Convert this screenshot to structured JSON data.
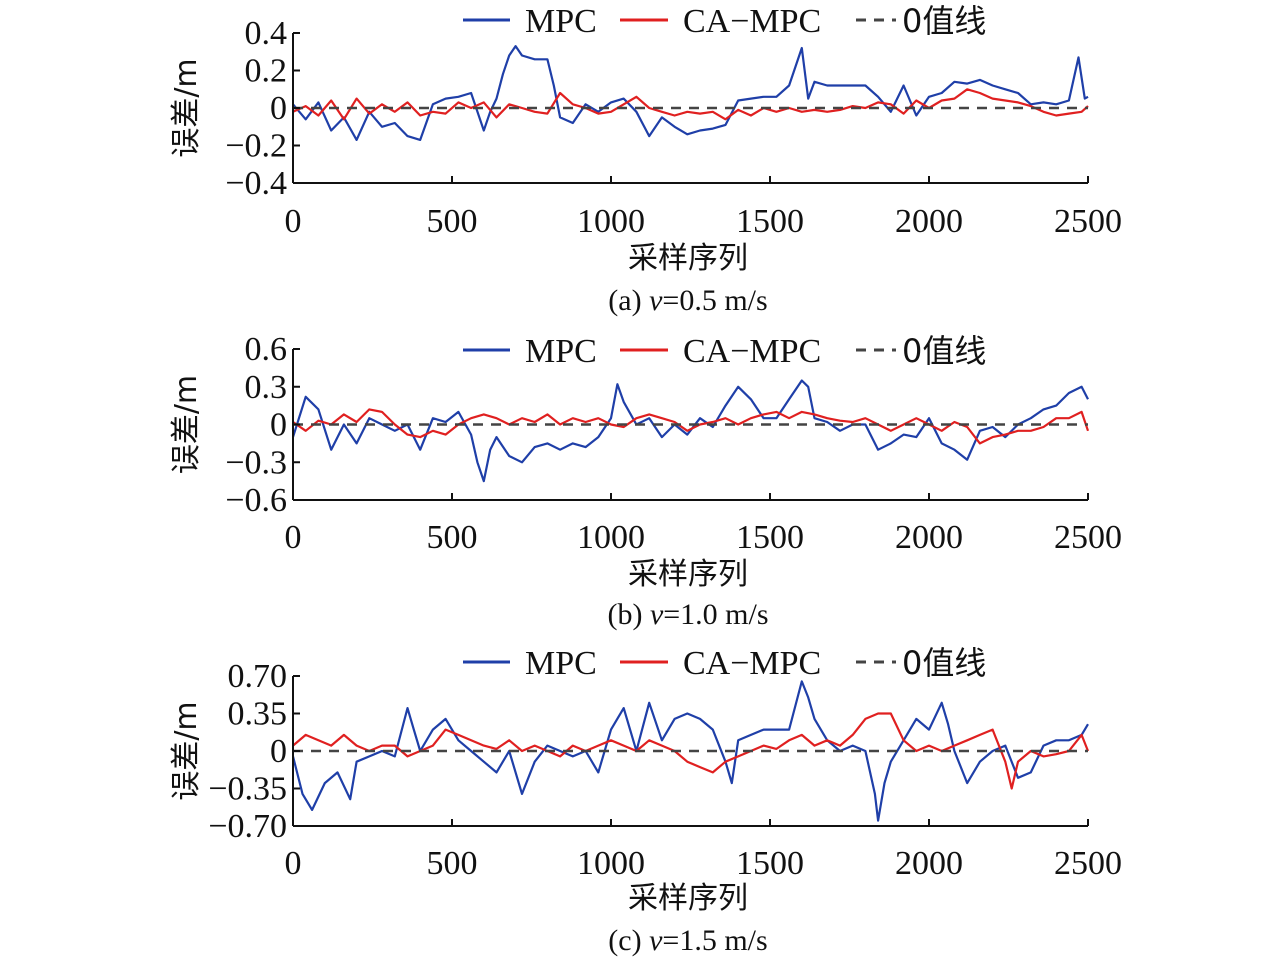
{
  "chart_data": [
    {
      "type": "line",
      "caption": "(a) v=0.5 m/s",
      "caption_prefix": "(a) ",
      "caption_var": "v",
      "caption_suffix": "=0.5 m/s",
      "xlabel": "采样序列",
      "ylabel": "误差/m",
      "xlim": [
        0,
        2500
      ],
      "ylim": [
        -0.4,
        0.4
      ],
      "xticks": [
        0,
        500,
        1000,
        1500,
        2000,
        2500
      ],
      "yticks": [
        0.4,
        0.2,
        0,
        -0.2,
        -0.4
      ],
      "ytick_labels": [
        "0.4",
        "0.2",
        "0",
        "−0.2",
        "−0.4"
      ],
      "legend": {
        "position": "top",
        "entries": [
          "MPC",
          "CA−MPC",
          "0值线"
        ]
      },
      "series": [
        {
          "name": "MPC",
          "color": "#1f3fa8",
          "style": "solid",
          "x": [
            0,
            40,
            80,
            120,
            160,
            200,
            240,
            280,
            320,
            360,
            400,
            440,
            480,
            520,
            560,
            600,
            620,
            640,
            660,
            680,
            700,
            720,
            760,
            800,
            820,
            840,
            880,
            920,
            960,
            1000,
            1040,
            1080,
            1120,
            1160,
            1200,
            1240,
            1280,
            1320,
            1360,
            1400,
            1440,
            1480,
            1520,
            1560,
            1600,
            1620,
            1640,
            1680,
            1720,
            1760,
            1800,
            1840,
            1880,
            1920,
            1960,
            2000,
            2040,
            2080,
            2120,
            2160,
            2200,
            2240,
            2280,
            2320,
            2360,
            2400,
            2440,
            2470,
            2490,
            2500
          ],
          "y": [
            0.02,
            -0.06,
            0.03,
            -0.12,
            -0.05,
            -0.17,
            -0.02,
            -0.1,
            -0.08,
            -0.15,
            -0.17,
            0.02,
            0.05,
            0.06,
            0.08,
            -0.12,
            -0.02,
            0.05,
            0.18,
            0.28,
            0.33,
            0.28,
            0.26,
            0.26,
            0.12,
            -0.05,
            -0.08,
            0.02,
            -0.02,
            0.03,
            0.05,
            -0.02,
            -0.15,
            -0.05,
            -0.1,
            -0.14,
            -0.12,
            -0.11,
            -0.09,
            0.04,
            0.05,
            0.06,
            0.06,
            0.12,
            0.32,
            0.05,
            0.14,
            0.12,
            0.12,
            0.12,
            0.12,
            0.06,
            -0.02,
            0.12,
            -0.04,
            0.06,
            0.08,
            0.14,
            0.13,
            0.15,
            0.12,
            0.1,
            0.08,
            0.02,
            0.03,
            0.02,
            0.04,
            0.27,
            0.05,
            0.06
          ]
        },
        {
          "name": "CA−MPC",
          "color": "#e02020",
          "style": "solid",
          "x": [
            0,
            40,
            80,
            120,
            160,
            200,
            240,
            280,
            320,
            360,
            400,
            440,
            480,
            520,
            560,
            600,
            640,
            680,
            720,
            760,
            800,
            840,
            880,
            920,
            960,
            1000,
            1040,
            1080,
            1120,
            1160,
            1200,
            1240,
            1280,
            1320,
            1360,
            1400,
            1440,
            1480,
            1520,
            1560,
            1600,
            1640,
            1680,
            1720,
            1760,
            1800,
            1840,
            1880,
            1920,
            1960,
            2000,
            2040,
            2080,
            2120,
            2160,
            2200,
            2240,
            2280,
            2320,
            2360,
            2400,
            2440,
            2480,
            2500
          ],
          "y": [
            -0.02,
            0.01,
            -0.04,
            0.04,
            -0.06,
            0.05,
            -0.03,
            0.02,
            -0.02,
            0.03,
            -0.04,
            -0.02,
            -0.03,
            0.03,
            0.0,
            0.03,
            -0.05,
            0.02,
            0.0,
            -0.02,
            -0.03,
            0.08,
            0.02,
            0.0,
            -0.03,
            -0.02,
            0.02,
            0.06,
            0.0,
            -0.02,
            -0.04,
            -0.02,
            -0.03,
            -0.02,
            -0.06,
            -0.01,
            -0.04,
            0.0,
            -0.02,
            0.0,
            -0.02,
            -0.01,
            -0.02,
            -0.01,
            0.01,
            0.0,
            0.03,
            0.02,
            -0.03,
            0.04,
            0.0,
            0.04,
            0.05,
            0.1,
            0.08,
            0.05,
            0.04,
            0.03,
            0.01,
            -0.02,
            -0.04,
            -0.03,
            -0.02,
            0.01
          ]
        },
        {
          "name": "0值线",
          "color": "#444444",
          "style": "dashed",
          "x": [
            0,
            2500
          ],
          "y": [
            0,
            0
          ]
        }
      ]
    },
    {
      "type": "line",
      "caption": "(b) v=1.0 m/s",
      "caption_prefix": "(b) ",
      "caption_var": "v",
      "caption_suffix": "=1.0 m/s",
      "xlabel": "采样序列",
      "ylabel": "误差/m",
      "xlim": [
        0,
        2500
      ],
      "ylim": [
        -0.6,
        0.6
      ],
      "xticks": [
        0,
        500,
        1000,
        1500,
        2000,
        2500
      ],
      "yticks": [
        0.6,
        0.3,
        0,
        -0.3,
        -0.6
      ],
      "ytick_labels": [
        "0.6",
        "0.3",
        "0",
        "−0.3",
        "−0.6"
      ],
      "legend": {
        "position": "top",
        "entries": [
          "MPC",
          "CA−MPC",
          "0值线"
        ]
      },
      "series": [
        {
          "name": "MPC",
          "color": "#1f3fa8",
          "style": "solid",
          "x": [
            0,
            40,
            80,
            120,
            160,
            200,
            240,
            280,
            320,
            360,
            400,
            440,
            480,
            520,
            560,
            580,
            600,
            620,
            640,
            680,
            720,
            760,
            800,
            840,
            880,
            920,
            960,
            1000,
            1020,
            1040,
            1080,
            1120,
            1160,
            1200,
            1240,
            1280,
            1320,
            1360,
            1400,
            1440,
            1480,
            1520,
            1560,
            1600,
            1620,
            1640,
            1680,
            1720,
            1760,
            1800,
            1840,
            1880,
            1920,
            1960,
            2000,
            2040,
            2080,
            2120,
            2160,
            2200,
            2240,
            2280,
            2320,
            2360,
            2400,
            2440,
            2480,
            2500
          ],
          "y": [
            -0.1,
            0.22,
            0.12,
            -0.2,
            0.0,
            -0.15,
            0.05,
            0.0,
            -0.05,
            0.0,
            -0.2,
            0.05,
            0.02,
            0.1,
            -0.08,
            -0.3,
            -0.45,
            -0.2,
            -0.1,
            -0.25,
            -0.3,
            -0.18,
            -0.15,
            -0.2,
            -0.15,
            -0.18,
            -0.1,
            0.05,
            0.32,
            0.18,
            0.0,
            0.05,
            -0.1,
            0.0,
            -0.08,
            0.05,
            -0.02,
            0.15,
            0.3,
            0.2,
            0.05,
            0.05,
            0.2,
            0.35,
            0.3,
            0.05,
            0.02,
            -0.05,
            0.0,
            0.0,
            -0.2,
            -0.15,
            -0.08,
            -0.1,
            0.05,
            -0.15,
            -0.2,
            -0.28,
            -0.05,
            -0.02,
            -0.1,
            0.0,
            0.05,
            0.12,
            0.15,
            0.25,
            0.3,
            0.2
          ]
        },
        {
          "name": "CA−MPC",
          "color": "#e02020",
          "style": "solid",
          "x": [
            0,
            40,
            80,
            120,
            160,
            200,
            240,
            280,
            320,
            360,
            400,
            440,
            480,
            520,
            560,
            600,
            640,
            680,
            720,
            760,
            800,
            840,
            880,
            920,
            960,
            1000,
            1040,
            1080,
            1120,
            1160,
            1200,
            1240,
            1280,
            1320,
            1360,
            1400,
            1440,
            1480,
            1520,
            1560,
            1600,
            1640,
            1680,
            1720,
            1760,
            1800,
            1840,
            1880,
            1920,
            1960,
            2000,
            2040,
            2080,
            2120,
            2160,
            2200,
            2240,
            2280,
            2320,
            2360,
            2400,
            2440,
            2480,
            2500
          ],
          "y": [
            0.02,
            -0.05,
            0.03,
            0.0,
            0.08,
            0.02,
            0.12,
            0.1,
            0.0,
            -0.08,
            -0.1,
            -0.05,
            -0.08,
            0.0,
            0.05,
            0.08,
            0.05,
            0.0,
            0.05,
            0.02,
            0.08,
            0.0,
            0.05,
            0.02,
            0.05,
            0.0,
            -0.02,
            0.05,
            0.08,
            0.05,
            0.02,
            -0.05,
            0.0,
            0.02,
            0.05,
            0.0,
            0.05,
            0.08,
            0.1,
            0.05,
            0.1,
            0.08,
            0.05,
            0.03,
            0.02,
            0.05,
            0.0,
            -0.05,
            0.0,
            0.05,
            0.0,
            -0.05,
            0.02,
            -0.02,
            -0.15,
            -0.1,
            -0.08,
            -0.05,
            -0.05,
            -0.02,
            0.05,
            0.05,
            0.1,
            -0.05
          ]
        },
        {
          "name": "0值线",
          "color": "#444444",
          "style": "dashed",
          "x": [
            0,
            2500
          ],
          "y": [
            0,
            0
          ]
        }
      ]
    },
    {
      "type": "line",
      "caption": "(c) v=1.5 m/s",
      "caption_prefix": "(c) ",
      "caption_var": "v",
      "caption_suffix": "=1.5 m/s",
      "xlabel": "采样序列",
      "ylabel": "误差/m",
      "xlim": [
        0,
        2500
      ],
      "ylim": [
        -0.7,
        0.7
      ],
      "xticks": [
        0,
        500,
        1000,
        1500,
        2000,
        2500
      ],
      "yticks": [
        0.7,
        0.35,
        0,
        -0.35,
        -0.7
      ],
      "ytick_labels": [
        "0.70",
        "0.35",
        "0",
        "−0.35",
        "−0.70"
      ],
      "legend": {
        "position": "top",
        "entries": [
          "MPC",
          "CA−MPC",
          "0值线"
        ]
      },
      "series": [
        {
          "name": "MPC",
          "color": "#1f3fa8",
          "style": "solid",
          "x": [
            0,
            30,
            60,
            100,
            140,
            180,
            200,
            240,
            280,
            320,
            360,
            380,
            400,
            440,
            480,
            520,
            560,
            600,
            640,
            680,
            720,
            760,
            800,
            840,
            880,
            920,
            960,
            1000,
            1040,
            1080,
            1120,
            1160,
            1200,
            1240,
            1280,
            1320,
            1360,
            1380,
            1400,
            1440,
            1480,
            1520,
            1560,
            1600,
            1620,
            1640,
            1680,
            1720,
            1760,
            1800,
            1830,
            1840,
            1860,
            1880,
            1920,
            1960,
            2000,
            2040,
            2060,
            2080,
            2120,
            2160,
            2200,
            2240,
            2280,
            2320,
            2360,
            2400,
            2440,
            2480,
            2500
          ],
          "y": [
            -0.05,
            -0.4,
            -0.55,
            -0.3,
            -0.2,
            -0.45,
            -0.1,
            -0.05,
            0.0,
            -0.05,
            0.4,
            0.2,
            0.0,
            0.2,
            0.3,
            0.1,
            0.0,
            -0.1,
            -0.2,
            0.0,
            -0.4,
            -0.1,
            0.05,
            0.0,
            -0.05,
            0.0,
            -0.2,
            0.2,
            0.4,
            0.0,
            0.45,
            0.1,
            0.3,
            0.35,
            0.3,
            0.2,
            -0.1,
            -0.3,
            0.1,
            0.15,
            0.2,
            0.2,
            0.2,
            0.65,
            0.5,
            0.3,
            0.1,
            0.0,
            0.05,
            0.0,
            -0.4,
            -0.65,
            -0.3,
            -0.1,
            0.1,
            0.3,
            0.2,
            0.45,
            0.25,
            0.0,
            -0.3,
            -0.1,
            0.0,
            0.05,
            -0.25,
            -0.2,
            0.05,
            0.1,
            0.1,
            0.15,
            0.25
          ]
        },
        {
          "name": "CA−MPC",
          "color": "#e02020",
          "style": "solid",
          "x": [
            0,
            40,
            80,
            120,
            160,
            200,
            240,
            280,
            320,
            360,
            400,
            440,
            480,
            520,
            560,
            600,
            640,
            680,
            720,
            760,
            800,
            840,
            880,
            920,
            960,
            1000,
            1040,
            1080,
            1120,
            1160,
            1200,
            1240,
            1280,
            1320,
            1360,
            1400,
            1440,
            1480,
            1520,
            1560,
            1600,
            1640,
            1680,
            1720,
            1760,
            1800,
            1840,
            1880,
            1920,
            1960,
            2000,
            2040,
            2080,
            2120,
            2160,
            2200,
            2240,
            2260,
            2280,
            2320,
            2360,
            2400,
            2440,
            2480,
            2500
          ],
          "y": [
            0.05,
            0.15,
            0.1,
            0.05,
            0.15,
            0.05,
            0.0,
            0.05,
            0.05,
            -0.05,
            0.0,
            0.05,
            0.2,
            0.15,
            0.1,
            0.05,
            0.02,
            0.1,
            0.0,
            0.05,
            0.0,
            -0.05,
            0.05,
            0.0,
            0.05,
            0.1,
            0.05,
            0.0,
            0.1,
            0.05,
            0.0,
            -0.1,
            -0.15,
            -0.2,
            -0.1,
            -0.05,
            0.0,
            0.05,
            0.02,
            0.1,
            0.15,
            0.05,
            0.1,
            0.05,
            0.15,
            0.3,
            0.35,
            0.35,
            0.1,
            0.0,
            0.05,
            0.0,
            0.05,
            0.1,
            0.15,
            0.2,
            -0.1,
            -0.35,
            -0.1,
            0.0,
            -0.05,
            -0.03,
            0.0,
            0.15,
            0.0
          ]
        },
        {
          "name": "0值线",
          "color": "#444444",
          "style": "dashed",
          "x": [
            0,
            2500
          ],
          "y": [
            0,
            0
          ]
        }
      ]
    }
  ]
}
